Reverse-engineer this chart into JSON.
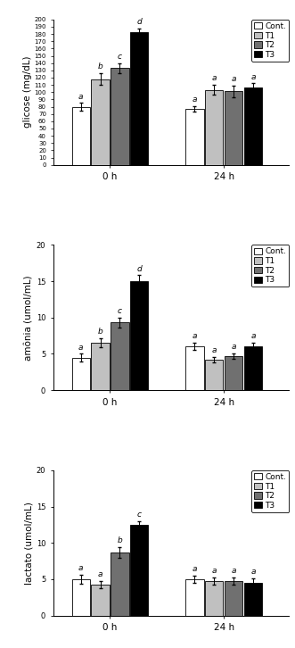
{
  "panel1": {
    "ylabel": "glicose (mg/dL)",
    "ylim": [
      0,
      200
    ],
    "yticks": [
      0,
      10,
      20,
      30,
      40,
      50,
      60,
      70,
      80,
      90,
      100,
      110,
      120,
      130,
      140,
      150,
      160,
      170,
      180,
      190,
      200
    ],
    "values_0h": [
      80,
      118,
      133,
      183
    ],
    "values_24h": [
      77,
      103,
      101,
      106
    ],
    "errors_0h": [
      5,
      8,
      7,
      5
    ],
    "errors_24h": [
      4,
      7,
      8,
      6
    ],
    "letters_0h": [
      "a",
      "b",
      "c",
      "d"
    ],
    "letters_24h": [
      "a",
      "a",
      "a",
      "a"
    ]
  },
  "panel2": {
    "ylabel": "amônia (umol/mL)",
    "ylim": [
      0,
      20
    ],
    "yticks": [
      0,
      5,
      10,
      15,
      20
    ],
    "values_0h": [
      4.5,
      6.5,
      9.3,
      15.0
    ],
    "values_24h": [
      6.0,
      4.2,
      4.7,
      6.0
    ],
    "errors_0h": [
      0.5,
      0.6,
      0.7,
      0.8
    ],
    "errors_24h": [
      0.5,
      0.4,
      0.4,
      0.5
    ],
    "letters_0h": [
      "a",
      "b",
      "c",
      "d"
    ],
    "letters_24h": [
      "a",
      "a",
      "a",
      "a"
    ]
  },
  "panel3": {
    "ylabel": "lactato (umol/mL)",
    "ylim": [
      0,
      20
    ],
    "yticks": [
      0,
      5,
      10,
      15,
      20
    ],
    "values_0h": [
      5.0,
      4.3,
      8.7,
      12.5
    ],
    "values_24h": [
      5.0,
      4.8,
      4.7,
      4.5
    ],
    "errors_0h": [
      0.6,
      0.5,
      0.7,
      0.5
    ],
    "errors_24h": [
      0.5,
      0.5,
      0.5,
      0.6
    ],
    "letters_0h": [
      "a",
      "a",
      "b",
      "c"
    ],
    "letters_24h": [
      "a",
      "a",
      "a",
      "a"
    ]
  },
  "legend_labels": [
    "Cont.",
    "T1",
    "T2",
    "T3"
  ],
  "bar_colors": [
    "#ffffff",
    "#c0c0c0",
    "#707070",
    "#000000"
  ],
  "bar_edgecolor": "#000000",
  "background_color": "#ffffff",
  "bar_width": 0.12,
  "group_centers": [
    0.35,
    1.05
  ],
  "xlim": [
    0.0,
    1.45
  ]
}
